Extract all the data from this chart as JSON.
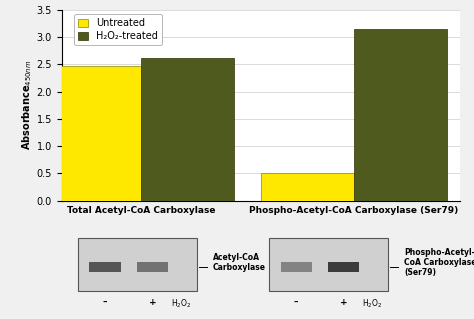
{
  "groups": [
    "Total Acetyl-CoA Carboxylase",
    "Phospho-Acetyl-CoA Carboxylase (Ser79)"
  ],
  "untreated_values": [
    2.47,
    0.51
  ],
  "treated_values": [
    2.62,
    3.15
  ],
  "untreated_color": "#FFE800",
  "treated_color": "#4F5A1E",
  "bar_width": 0.35,
  "ylim": [
    0,
    3.5
  ],
  "yticks": [
    0,
    0.5,
    1.0,
    1.5,
    2.0,
    2.5,
    3.0,
    3.5
  ],
  "ylabel": "Absorbance$_{450nm}$",
  "legend_untreated": "Untreated",
  "legend_treated": "H₂O₂-treated",
  "bg_color": "#f0f0f0",
  "plot_bg": "#ffffff",
  "axis_fontsize": 7,
  "legend_fontsize": 7,
  "tick_fontsize": 7,
  "group_label_fontsize": 6.5,
  "x_positions": [
    0.3,
    1.1
  ],
  "xlim": [
    0.0,
    1.5
  ]
}
